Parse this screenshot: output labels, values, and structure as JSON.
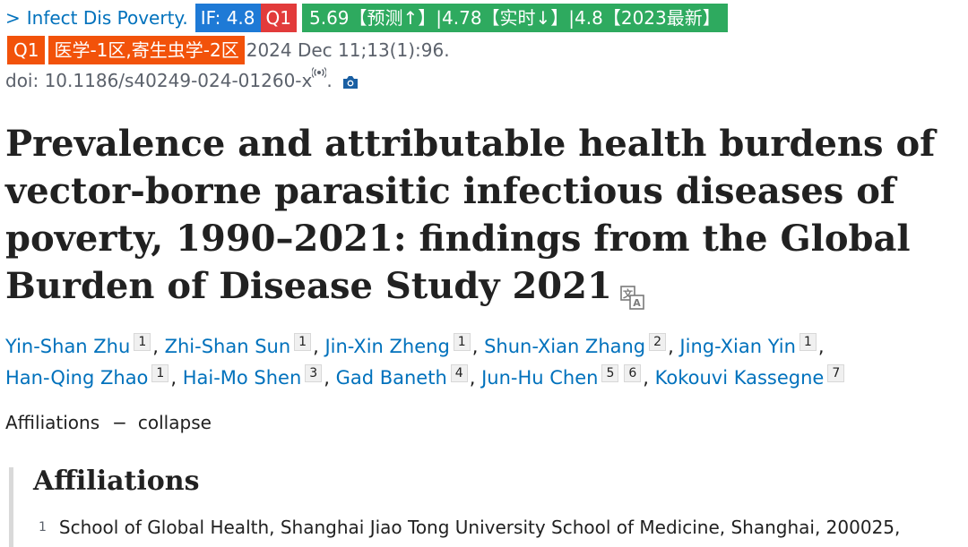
{
  "journal": {
    "chevron": ">",
    "name": "Infect Dis Poverty.",
    "if_badge": "IF: 4.8",
    "quartile_badge": "Q1",
    "prediction_badge": "5.69【预测↑】|4.78【实时↓】|4.8【2023最新】",
    "q1_badge": "Q1",
    "cas_badge": "医学-1区,寄生虫学-2区",
    "citation": "2024 Dec 11;13(1):96.",
    "doi": "doi: 10.1186/s40249-024-01260-x",
    "doi_suffix": "."
  },
  "article": {
    "title": "Prevalence and attributable health burdens of vector-borne parasitic infectious diseases of poverty, 1990–2021: findings from the Global Burden of Disease Study 2021"
  },
  "authors": [
    {
      "name": "Yin-Shan Zhu",
      "affs": [
        "1"
      ]
    },
    {
      "name": "Zhi-Shan Sun",
      "affs": [
        "1"
      ]
    },
    {
      "name": "Jin-Xin Zheng",
      "affs": [
        "1"
      ]
    },
    {
      "name": "Shun-Xian Zhang",
      "affs": [
        "2"
      ]
    },
    {
      "name": "Jing-Xian Yin",
      "affs": [
        "1"
      ]
    },
    {
      "name": "Han-Qing Zhao",
      "affs": [
        "1"
      ]
    },
    {
      "name": "Hai-Mo Shen",
      "affs": [
        "3"
      ]
    },
    {
      "name": "Gad Baneth",
      "affs": [
        "4"
      ]
    },
    {
      "name": "Jun-Hu Chen",
      "affs": [
        "5",
        "6"
      ]
    },
    {
      "name": "Kokouvi Kassegne",
      "affs": [
        "7"
      ]
    }
  ],
  "affiliations_toggle": {
    "label": "Affiliations",
    "dash": "−",
    "action": "collapse"
  },
  "affiliations": {
    "heading": "Affiliations",
    "items": [
      {
        "num": "1",
        "text": "School of Global Health, Shanghai Jiao Tong University School of Medicine, Shanghai, 200025,"
      }
    ]
  },
  "colors": {
    "link": "#0071bc",
    "if_badge": "#1e7ad6",
    "q1_red": "#e23b3b",
    "prediction_green": "#2eaa5f",
    "orange": "#f2520a"
  },
  "icons": {
    "chevron": "chevron-right-icon",
    "broadcast": "broadcast-icon",
    "camera": "camera-icon",
    "translate": "translate-icon"
  }
}
